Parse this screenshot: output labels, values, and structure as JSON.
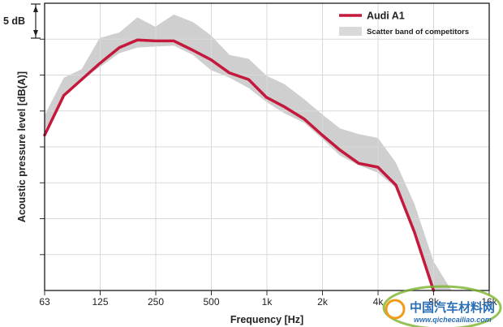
{
  "chart_data": {
    "type": "line",
    "title": "",
    "xlabel": "Frequency [Hz]",
    "ylabel": "Acoustic pressure level [dB(A)]",
    "x_scale": "log2",
    "x_ticks": [
      "63",
      "125",
      "250",
      "500",
      "1k",
      "2k",
      "4k",
      "8k",
      "16k"
    ],
    "y_scale_indicator": "5 dB",
    "y_units": "dB (relative)",
    "ylim": [
      -6.5,
      24
    ],
    "grid": true,
    "legend_position": "top-right",
    "legend": {
      "line_label": "Audi A1",
      "band_label": "Scatter band of competitors"
    },
    "series": [
      {
        "name": "Audi A1",
        "color": "#c4193c",
        "x": [
          63,
          80,
          100,
          125,
          160,
          200,
          250,
          315,
          400,
          500,
          630,
          800,
          1000,
          1250,
          1600,
          2000,
          2500,
          3150,
          4000,
          5000,
          6300,
          8000
        ],
        "y": [
          10,
          14.2,
          15.9,
          17.6,
          19.3,
          20.1,
          20.0,
          20.0,
          19.0,
          18.0,
          16.6,
          15.9,
          14.0,
          13.0,
          11.7,
          10.0,
          8.4,
          7.0,
          6.6,
          4.7,
          -0.3,
          -6.5
        ]
      },
      {
        "name": "Scatter band of competitors",
        "type": "area-band",
        "color": "#cfcfcf",
        "x": [
          63,
          80,
          100,
          125,
          160,
          200,
          250,
          315,
          400,
          500,
          630,
          800,
          1000,
          1250,
          1600,
          2000,
          2500,
          3150,
          4000,
          5000,
          6300,
          8000,
          10000
        ],
        "upper": [
          12.1,
          16.1,
          17.0,
          20.3,
          20.9,
          22.5,
          21.5,
          22.8,
          22.0,
          20.6,
          18.5,
          18.1,
          16.3,
          15.4,
          13.8,
          12.2,
          10.7,
          10.1,
          9.7,
          7.1,
          2.7,
          -3.4,
          -6.5
        ],
        "lower": [
          10.5,
          14.0,
          15.9,
          17.2,
          18.7,
          19.3,
          19.4,
          19.5,
          18.5,
          16.9,
          16.1,
          15.0,
          13.5,
          12.3,
          11.3,
          9.6,
          7.8,
          6.8,
          6.0,
          4.4,
          -0.7,
          -6.5,
          -6.5
        ]
      }
    ]
  },
  "watermark": {
    "text": "中国汽车材料网",
    "url": "www.qichecailiao.com"
  }
}
